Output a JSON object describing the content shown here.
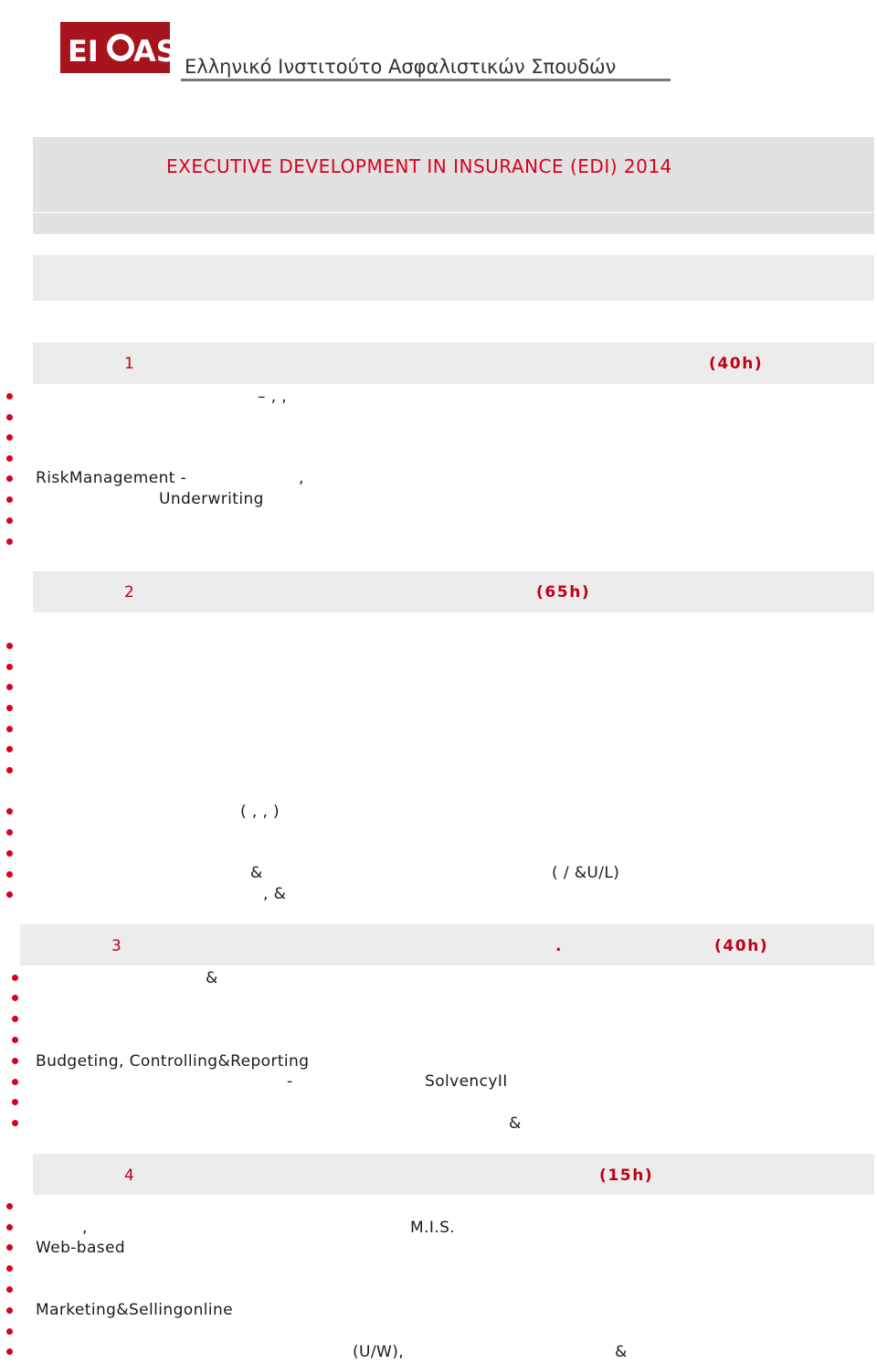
{
  "logo": {
    "mark": "EI AS",
    "subtitle": "Ελληνικό Ινστιτούτο Ασφαλιστικών Σπουδών"
  },
  "program_title": "EXECUTIVE DEVELOPMENT IN INSURANCE (EDI) 2014",
  "modules": [
    {
      "number": "1",
      "hours": "(40h)"
    },
    {
      "number": "2",
      "hours": "(65h)"
    },
    {
      "number": "3",
      "dot": ".",
      "hours": "(40h)"
    },
    {
      "number": "4",
      "hours": "(15h)"
    }
  ],
  "m1": {
    "line1": "–        ,           ,",
    "risk": "RiskManagement -",
    "risk_comma": ",",
    "underwriting": "Underwriting"
  },
  "m2": {
    "paren_list": "(           ,                    ,                 )",
    "amp1": "&",
    "ul": "(  /   &U/L)",
    "comma_amp": ",        &"
  },
  "m3": {
    "amp1": "&",
    "budgeting": "Budgeting, Controlling&Reporting",
    "dash": "-",
    "solvency": "SolvencyII",
    "amp2": "&"
  },
  "m4": {
    "comma": ",",
    "mis": "M.I.S.",
    "web": "Web-based",
    "marketing": "Marketing&Sellingonline",
    "uw": "(U/W),",
    "amp": "&"
  }
}
